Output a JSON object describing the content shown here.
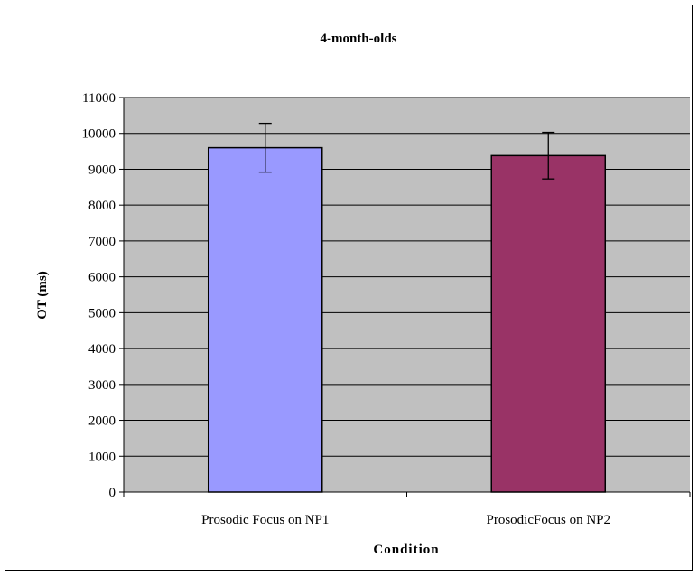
{
  "chart_data": {
    "type": "bar",
    "title": "4-month-olds",
    "xlabel": "Condition",
    "ylabel": "OT (ms)",
    "categories": [
      "Prosodic Focus on NP1",
      "ProsodicFocus on NP2"
    ],
    "values": [
      9600,
      9380
    ],
    "error": [
      680,
      650
    ],
    "bar_colors": [
      "#9999ff",
      "#993366"
    ],
    "plot_background": "#c0c0c0",
    "ylim": [
      0,
      11000
    ],
    "yticks": [
      0,
      1000,
      2000,
      3000,
      4000,
      5000,
      6000,
      7000,
      8000,
      9000,
      10000,
      11000
    ],
    "grid": true,
    "legend": "none"
  }
}
